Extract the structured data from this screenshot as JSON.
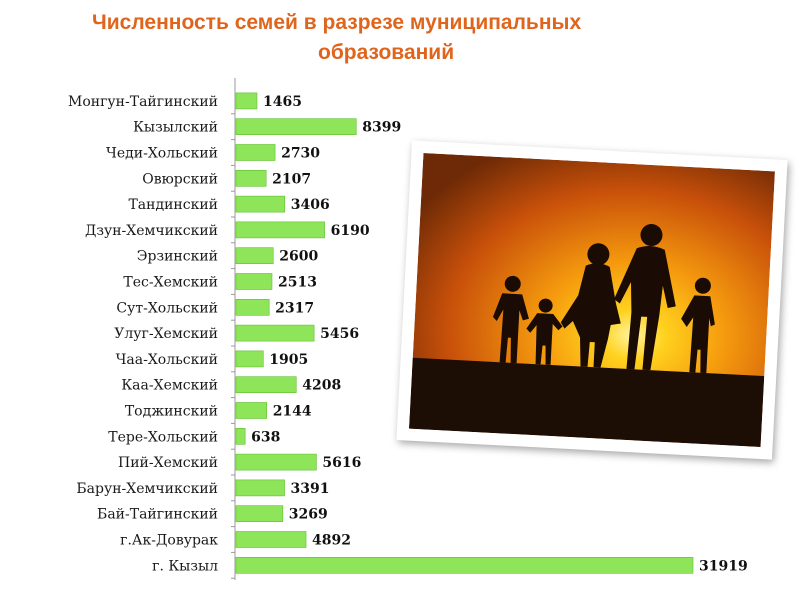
{
  "title": {
    "line1": "Численность семей в разрезе муниципальных",
    "line2": "образований"
  },
  "colors": {
    "title": "#e0651c",
    "bar": "#8fe55a",
    "bar_edge": "#5fbf2e"
  },
  "chart_data": {
    "type": "bar",
    "orientation": "horizontal",
    "title": "Численность семей в разрезе муниципальных образований",
    "categories": [
      "Монгун-Тайгинский",
      "Кызылский",
      "Чеди-Хольский",
      "Овюрский",
      "Тандинский",
      "Дзун-Хемчикский",
      "Эрзинский",
      "Тес-Хемский",
      "Сут-Хольский",
      "Улуг-Хемский",
      "Чаа-Хольский",
      "Каа-Хемский",
      "Тоджинский",
      "Тере-Хольский",
      "Пий-Хемский",
      "Барун-Хемчикский",
      "Бай-Тайгинский",
      "г.Ак-Довурак",
      "г. Кызыл"
    ],
    "values": [
      1465,
      8399,
      2730,
      2107,
      3406,
      6190,
      2600,
      2513,
      2317,
      5456,
      1905,
      4208,
      2144,
      638,
      5616,
      3391,
      3269,
      4892,
      31919
    ],
    "xlim": [
      0,
      31919
    ],
    "grid": false,
    "legend": "none"
  },
  "photo": {
    "icon": "family-sunset-photo"
  }
}
